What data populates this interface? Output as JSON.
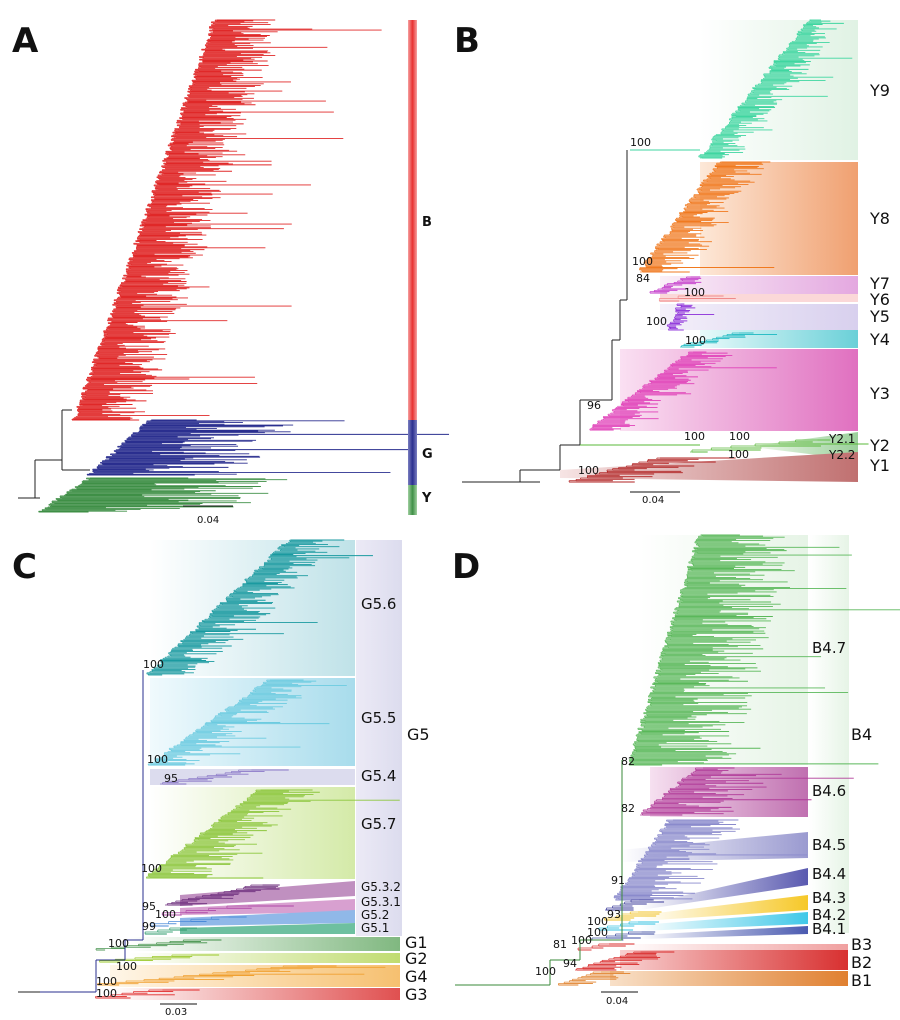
{
  "panels": {
    "A": {
      "label": "A",
      "scale": "0.04",
      "bars": [
        {
          "label": "B",
          "color": "#e02828"
        },
        {
          "label": "G",
          "color": "#2a2f8f"
        },
        {
          "label": "Y",
          "color": "#3f8f46"
        }
      ]
    },
    "B": {
      "label": "B",
      "scale": "0.04",
      "clades": [
        {
          "name": "Y9",
          "color": "#3fd6a0"
        },
        {
          "name": "Y8",
          "color": "#f07a20"
        },
        {
          "name": "Y7",
          "color": "#c030c8"
        },
        {
          "name": "Y6",
          "color": "#f08a8a"
        },
        {
          "name": "Y5",
          "color": "#8a2ad8"
        },
        {
          "name": "Y4",
          "color": "#1ab8c0"
        },
        {
          "name": "Y3",
          "color": "#e040b8"
        },
        {
          "name": "Y2",
          "color": "#5ab83a"
        },
        {
          "name": "Y1",
          "color": "#b02020"
        }
      ],
      "subclades": [
        "Y2.1",
        "Y2.2"
      ],
      "bootstraps": [
        "100",
        "100",
        "84",
        "100",
        "100",
        "100",
        "96",
        "100",
        "100",
        "100",
        "100"
      ]
    },
    "C": {
      "label": "C",
      "scale": "0.03",
      "group": "G5",
      "subclades": [
        {
          "name": "G5.6",
          "color": "#1a9aa0"
        },
        {
          "name": "G5.5",
          "color": "#6ccbe0"
        },
        {
          "name": "G5.4",
          "color": "#8c7ac8"
        },
        {
          "name": "G5.7",
          "color": "#8cc63c"
        },
        {
          "name": "G5.3.2",
          "color": "#6a2a7a"
        },
        {
          "name": "G5.3.1",
          "color": "#b04aa8"
        },
        {
          "name": "G5.2",
          "color": "#4a8ad8"
        },
        {
          "name": "G5.1",
          "color": "#2a9a6a"
        }
      ],
      "outer": [
        {
          "name": "G1",
          "color": "#3f8f46"
        },
        {
          "name": "G2",
          "color": "#9ac828"
        },
        {
          "name": "G4",
          "color": "#f0a030"
        },
        {
          "name": "G3",
          "color": "#e02828"
        }
      ],
      "bootstraps": [
        "100",
        "100",
        "95",
        "100",
        "95",
        "100",
        "99",
        "100",
        "100",
        "100",
        "100"
      ]
    },
    "D": {
      "label": "D",
      "scale": "0.04",
      "group": "B4",
      "subclades": [
        {
          "name": "B4.7",
          "color": "#5ab85a"
        },
        {
          "name": "B4.6",
          "color": "#b03a98"
        },
        {
          "name": "B4.5",
          "color": "#8a8acc"
        },
        {
          "name": "B4.4",
          "color": "#3a3a9a"
        },
        {
          "name": "B4.3",
          "color": "#f0c020"
        },
        {
          "name": "B4.2",
          "color": "#30c0e0"
        },
        {
          "name": "B4.1",
          "color": "#3a4aa0"
        }
      ],
      "outer": [
        {
          "name": "B3",
          "color": "#d82828"
        },
        {
          "name": "B2",
          "color": "#d82828"
        },
        {
          "name": "B1",
          "color": "#e0802a"
        }
      ],
      "bootstraps": [
        "82",
        "82",
        "91",
        "93",
        "100",
        "100",
        "81",
        "100",
        "94",
        "100"
      ]
    }
  }
}
